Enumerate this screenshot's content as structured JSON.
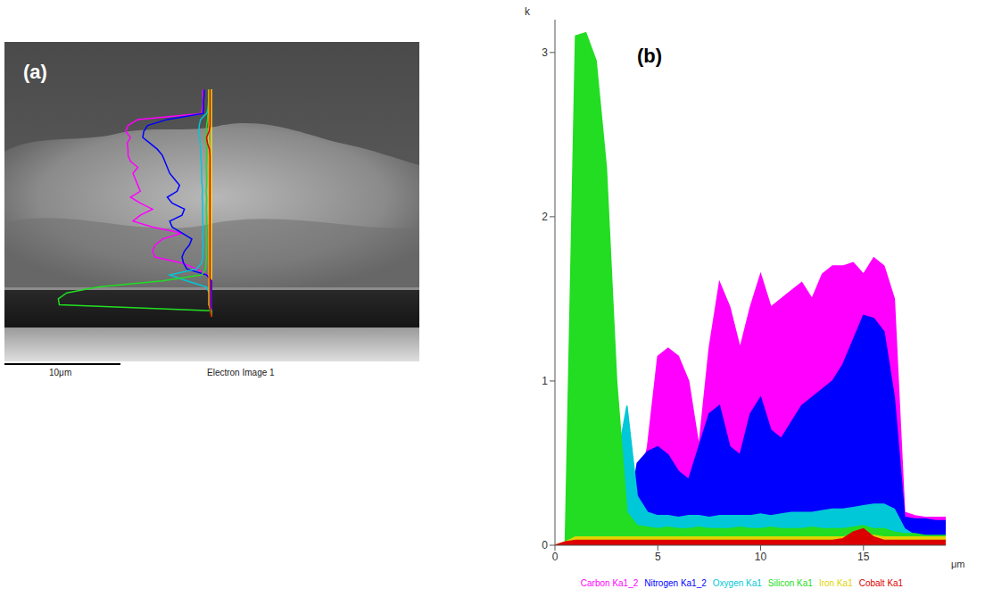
{
  "image_panel": {
    "label": "(a)",
    "scale_bar_label": "10μm",
    "caption": "Electron Image 1"
  },
  "chart_data": {
    "type": "area",
    "panel_label": "(b)",
    "x_label": "μm",
    "y_label": "k",
    "x": [
      0,
      0.5,
      1,
      1.5,
      2,
      2.5,
      3,
      3.5,
      4,
      4.5,
      5,
      5.5,
      6,
      6.5,
      7,
      7.5,
      8,
      8.5,
      9,
      9.5,
      10,
      10.5,
      11,
      11.5,
      12,
      12.5,
      13,
      13.5,
      14,
      14.5,
      15,
      15.5,
      16,
      16.5,
      17,
      17.5,
      18,
      18.5,
      19
    ],
    "series": [
      {
        "name": "Carbon Ka1_2",
        "color": "#ff00ff",
        "values": [
          0,
          0,
          0,
          0,
          0,
          0,
          0,
          0.1,
          0.3,
          0.6,
          1.15,
          1.2,
          1.15,
          1.0,
          0.6,
          1.2,
          1.6,
          1.45,
          1.2,
          1.45,
          1.65,
          1.45,
          1.5,
          1.55,
          1.6,
          1.5,
          1.65,
          1.7,
          1.7,
          1.72,
          1.65,
          1.75,
          1.7,
          1.5,
          0.2,
          0.18,
          0.17,
          0.17,
          0.17
        ]
      },
      {
        "name": "Nitrogen Ka1_2",
        "color": "#0000ff",
        "values": [
          0,
          0,
          0,
          0,
          0,
          0,
          0,
          0.1,
          0.5,
          0.57,
          0.6,
          0.55,
          0.45,
          0.4,
          0.6,
          0.8,
          0.85,
          0.6,
          0.55,
          0.8,
          0.9,
          0.7,
          0.65,
          0.75,
          0.85,
          0.9,
          0.95,
          1.0,
          1.1,
          1.25,
          1.4,
          1.38,
          1.3,
          0.9,
          0.17,
          0.16,
          0.16,
          0.15,
          0.15
        ]
      },
      {
        "name": "Oxygen Ka1",
        "color": "#00c8d8",
        "values": [
          0,
          0,
          0.05,
          0.05,
          0.05,
          0.1,
          0.5,
          0.85,
          0.3,
          0.2,
          0.18,
          0.18,
          0.17,
          0.18,
          0.18,
          0.17,
          0.18,
          0.18,
          0.18,
          0.18,
          0.19,
          0.18,
          0.19,
          0.2,
          0.2,
          0.2,
          0.21,
          0.22,
          0.22,
          0.23,
          0.24,
          0.25,
          0.25,
          0.22,
          0.1,
          0.06,
          0.05,
          0.05,
          0.05
        ]
      },
      {
        "name": "Silicon Ka1",
        "color": "#22dd22",
        "values": [
          0,
          0,
          3.1,
          3.12,
          2.95,
          2.3,
          1.0,
          0.2,
          0.12,
          0.11,
          0.1,
          0.11,
          0.1,
          0.1,
          0.11,
          0.1,
          0.1,
          0.1,
          0.11,
          0.1,
          0.1,
          0.11,
          0.1,
          0.1,
          0.1,
          0.11,
          0.1,
          0.1,
          0.1,
          0.11,
          0.12,
          0.1,
          0.1,
          0.08,
          0.07,
          0.07,
          0.06,
          0.06,
          0.06
        ]
      },
      {
        "name": "Iron Ka1",
        "color": "#e0d400",
        "values": [
          0,
          0.02,
          0.05,
          0.05,
          0.05,
          0.05,
          0.05,
          0.05,
          0.05,
          0.05,
          0.05,
          0.05,
          0.05,
          0.05,
          0.05,
          0.05,
          0.05,
          0.05,
          0.05,
          0.05,
          0.05,
          0.05,
          0.05,
          0.05,
          0.05,
          0.05,
          0.05,
          0.05,
          0.05,
          0.06,
          0.07,
          0.06,
          0.05,
          0.05,
          0.05,
          0.05,
          0.05,
          0.05,
          0.05
        ]
      },
      {
        "name": "Cobalt Ka1",
        "color": "#dd0000",
        "values": [
          0,
          0.02,
          0.03,
          0.03,
          0.03,
          0.03,
          0.03,
          0.03,
          0.03,
          0.03,
          0.03,
          0.03,
          0.03,
          0.03,
          0.03,
          0.03,
          0.03,
          0.03,
          0.03,
          0.03,
          0.03,
          0.03,
          0.03,
          0.03,
          0.03,
          0.03,
          0.03,
          0.03,
          0.04,
          0.08,
          0.1,
          0.05,
          0.03,
          0.03,
          0.03,
          0.03,
          0.03,
          0.03,
          0.03
        ]
      }
    ],
    "xlim": [
      0,
      19
    ],
    "xticks": [
      0,
      5,
      10,
      15
    ],
    "ylim": [
      0,
      3.2
    ],
    "yticks": [
      0,
      1,
      2,
      3
    ],
    "legend": "bottom"
  }
}
